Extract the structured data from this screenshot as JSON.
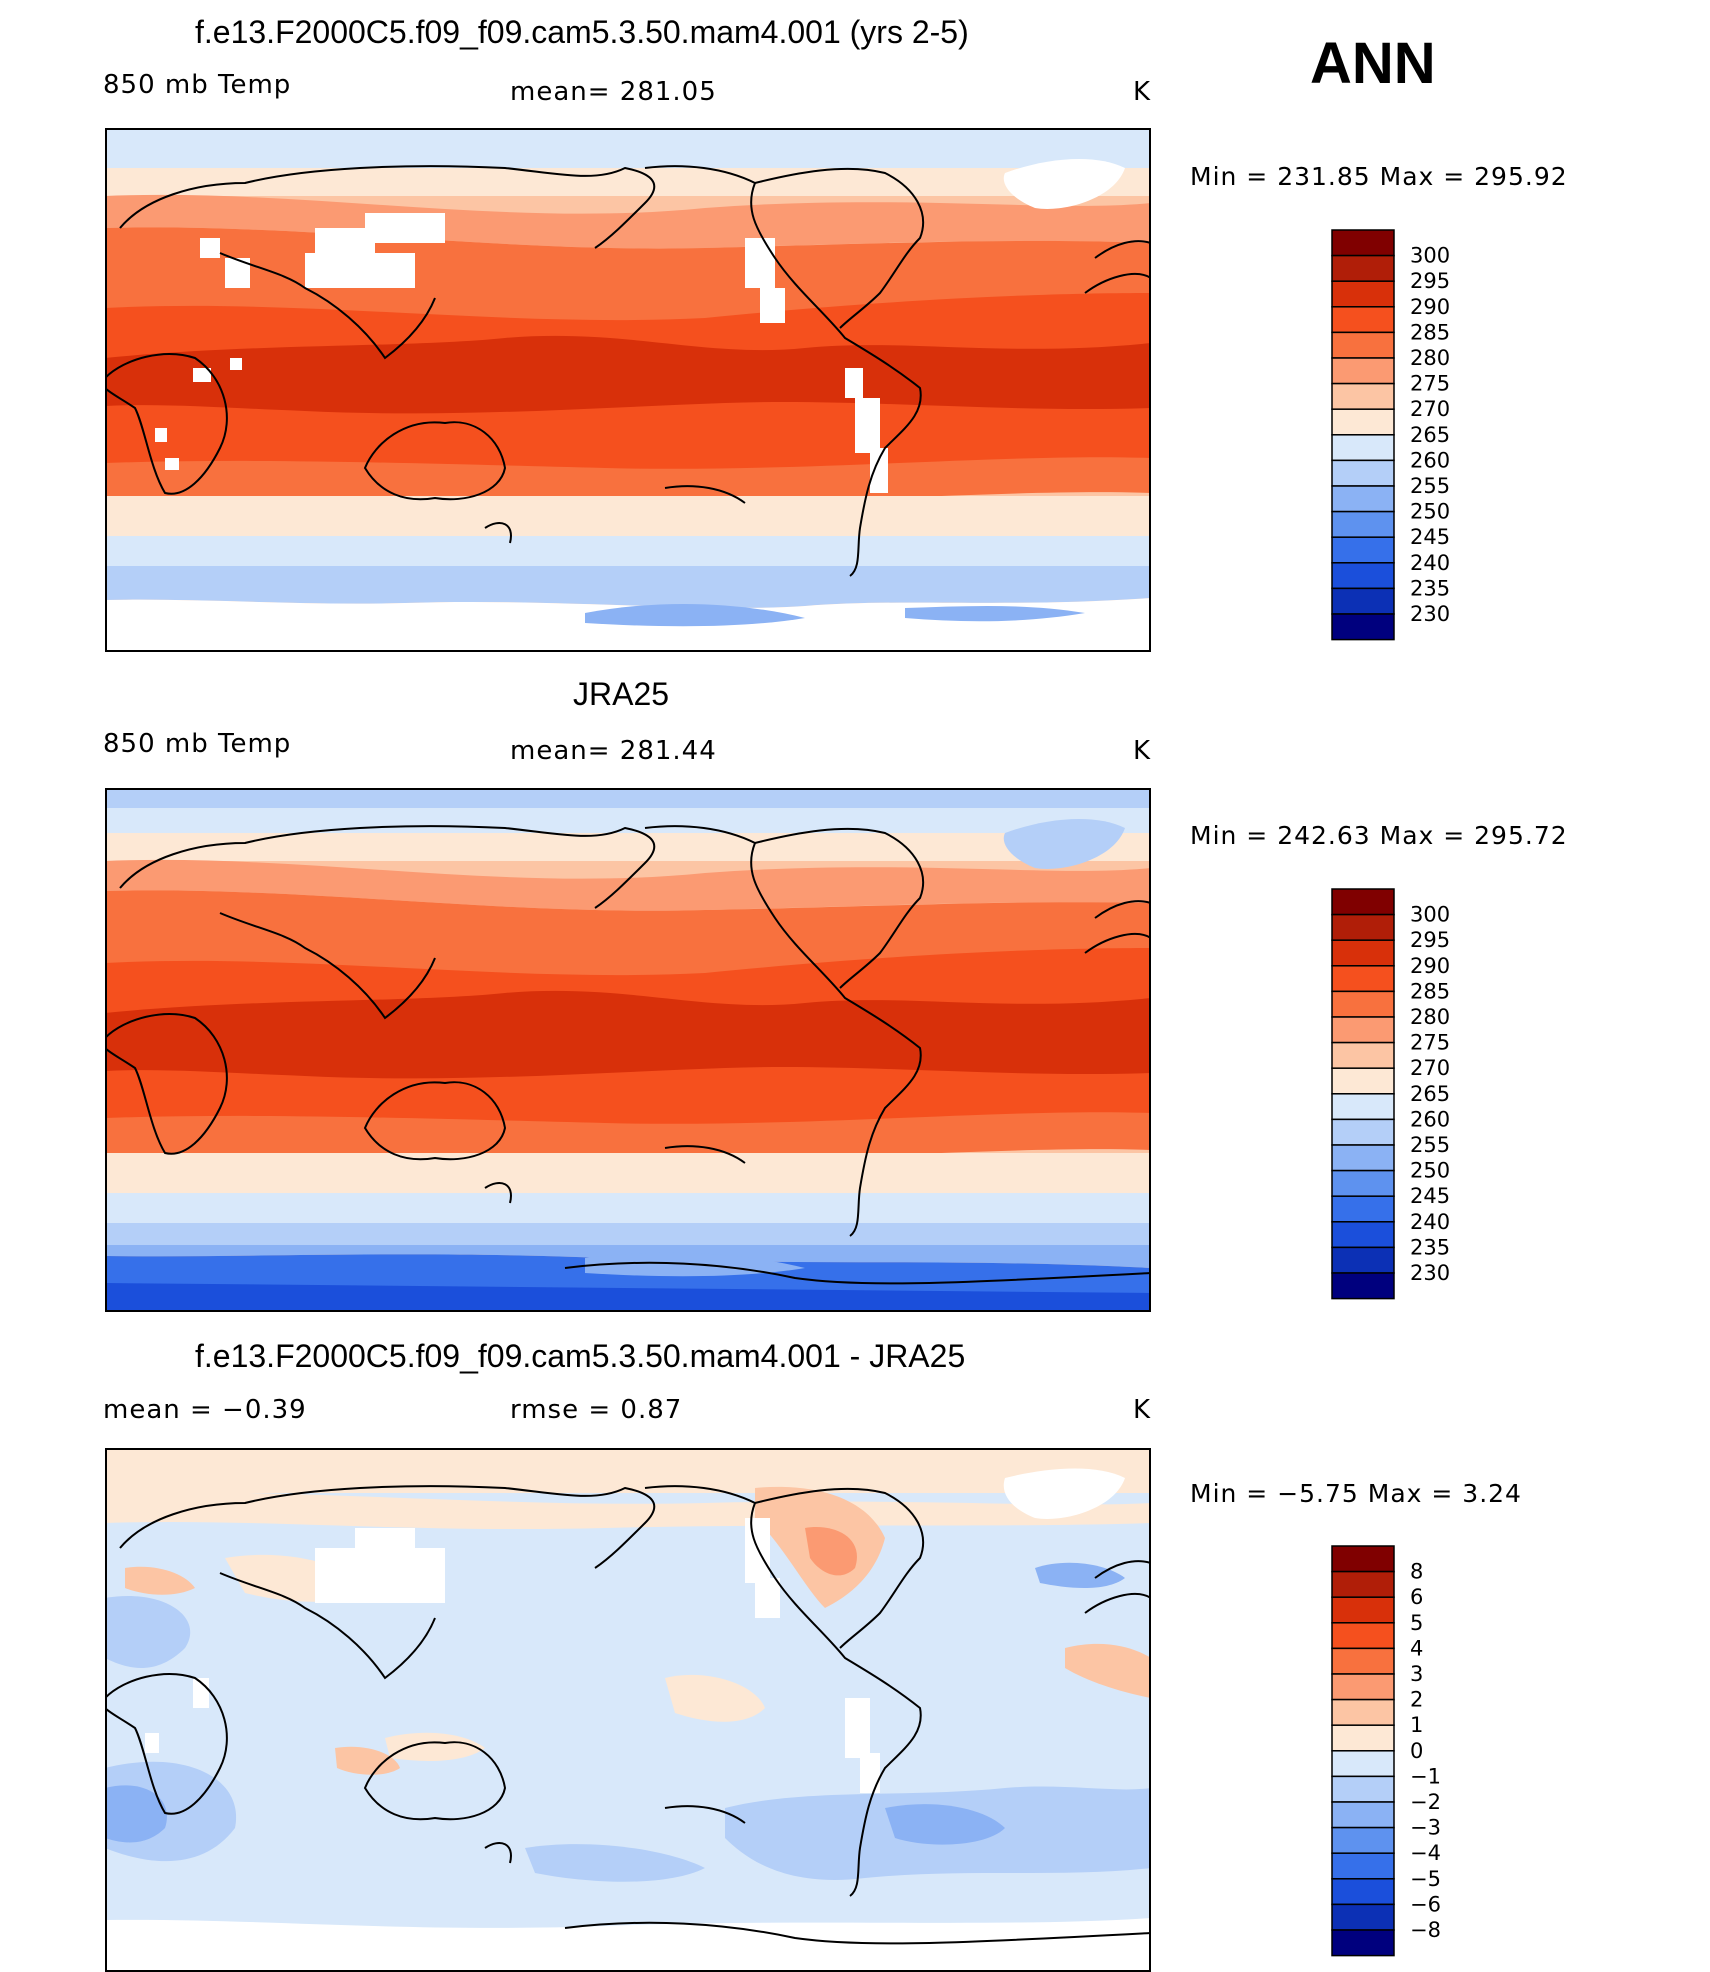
{
  "season": "ANN",
  "panels": [
    {
      "title": "f.e13.F2000C5.f09_f09.cam5.3.50.mam4.001 (yrs 2-5)",
      "left_label": "850 mb Temp",
      "center_label": "mean= 281.05",
      "units": "K",
      "minmax": "Min  =  231.85  Max  =  295.92",
      "colorbar": {
        "labels": [
          "300",
          "295",
          "290",
          "285",
          "280",
          "275",
          "270",
          "265",
          "260",
          "255",
          "250",
          "245",
          "240",
          "235",
          "230"
        ],
        "colors": [
          "#800000",
          "#b01e08",
          "#d8300a",
          "#f5501e",
          "#f8713e",
          "#fb9a72",
          "#fcc5a4",
          "#fde8d5",
          "#d8e8fa",
          "#b4cff8",
          "#8bb2f4",
          "#5e92ef",
          "#3670ea",
          "#1b4fdb",
          "#0c30b5",
          "#00007e"
        ]
      }
    },
    {
      "title": "JRA25",
      "left_label": "850 mb Temp",
      "center_label": "mean= 281.44",
      "units": "K",
      "minmax": "Min  =  242.63  Max  =  295.72",
      "colorbar": {
        "labels": [
          "300",
          "295",
          "290",
          "285",
          "280",
          "275",
          "270",
          "265",
          "260",
          "255",
          "250",
          "245",
          "240",
          "235",
          "230"
        ],
        "colors": [
          "#800000",
          "#b01e08",
          "#d8300a",
          "#f5501e",
          "#f8713e",
          "#fb9a72",
          "#fcc5a4",
          "#fde8d5",
          "#d8e8fa",
          "#b4cff8",
          "#8bb2f4",
          "#5e92ef",
          "#3670ea",
          "#1b4fdb",
          "#0c30b5",
          "#00007e"
        ]
      }
    },
    {
      "title": "f.e13.F2000C5.f09_f09.cam5.3.50.mam4.001 - JRA25",
      "left_label": "mean  =    −0.39",
      "center_label": "rmse  =     0.87",
      "units": "K",
      "minmax": "Min  =    −5.75  Max  =      3.24",
      "colorbar": {
        "labels": [
          "8",
          "6",
          "5",
          "4",
          "3",
          "2",
          "1",
          "0",
          "−1",
          "−2",
          "−3",
          "−4",
          "−5",
          "−6",
          "−8"
        ],
        "colors": [
          "#800000",
          "#b01e08",
          "#d8300a",
          "#f5501e",
          "#f8713e",
          "#fb9a72",
          "#fcc5a4",
          "#fde8d5",
          "#d8e8fa",
          "#b4cff8",
          "#8bb2f4",
          "#5e92ef",
          "#3670ea",
          "#1b4fdb",
          "#0c30b5",
          "#00007e"
        ]
      }
    }
  ],
  "chart_data": [
    {
      "type": "heatmap",
      "title": "f.e13.F2000C5.f09_f09.cam5.3.50.mam4.001 (yrs 2-5)",
      "field": "850 mb Temp",
      "units": "K",
      "mean": 281.05,
      "min": 231.85,
      "max": 295.92,
      "contour_levels": [
        230,
        235,
        240,
        245,
        250,
        255,
        260,
        265,
        270,
        275,
        280,
        285,
        290,
        295,
        300
      ]
    },
    {
      "type": "heatmap",
      "title": "JRA25",
      "field": "850 mb Temp",
      "units": "K",
      "mean": 281.44,
      "min": 242.63,
      "max": 295.72,
      "contour_levels": [
        230,
        235,
        240,
        245,
        250,
        255,
        260,
        265,
        270,
        275,
        280,
        285,
        290,
        295,
        300
      ]
    },
    {
      "type": "heatmap",
      "title": "f.e13.F2000C5.f09_f09.cam5.3.50.mam4.001 - JRA25",
      "units": "K",
      "mean": -0.39,
      "rmse": 0.87,
      "min": -5.75,
      "max": 3.24,
      "contour_levels": [
        -8,
        -6,
        -5,
        -4,
        -3,
        -2,
        -1,
        0,
        1,
        2,
        3,
        4,
        5,
        6,
        8
      ]
    }
  ]
}
